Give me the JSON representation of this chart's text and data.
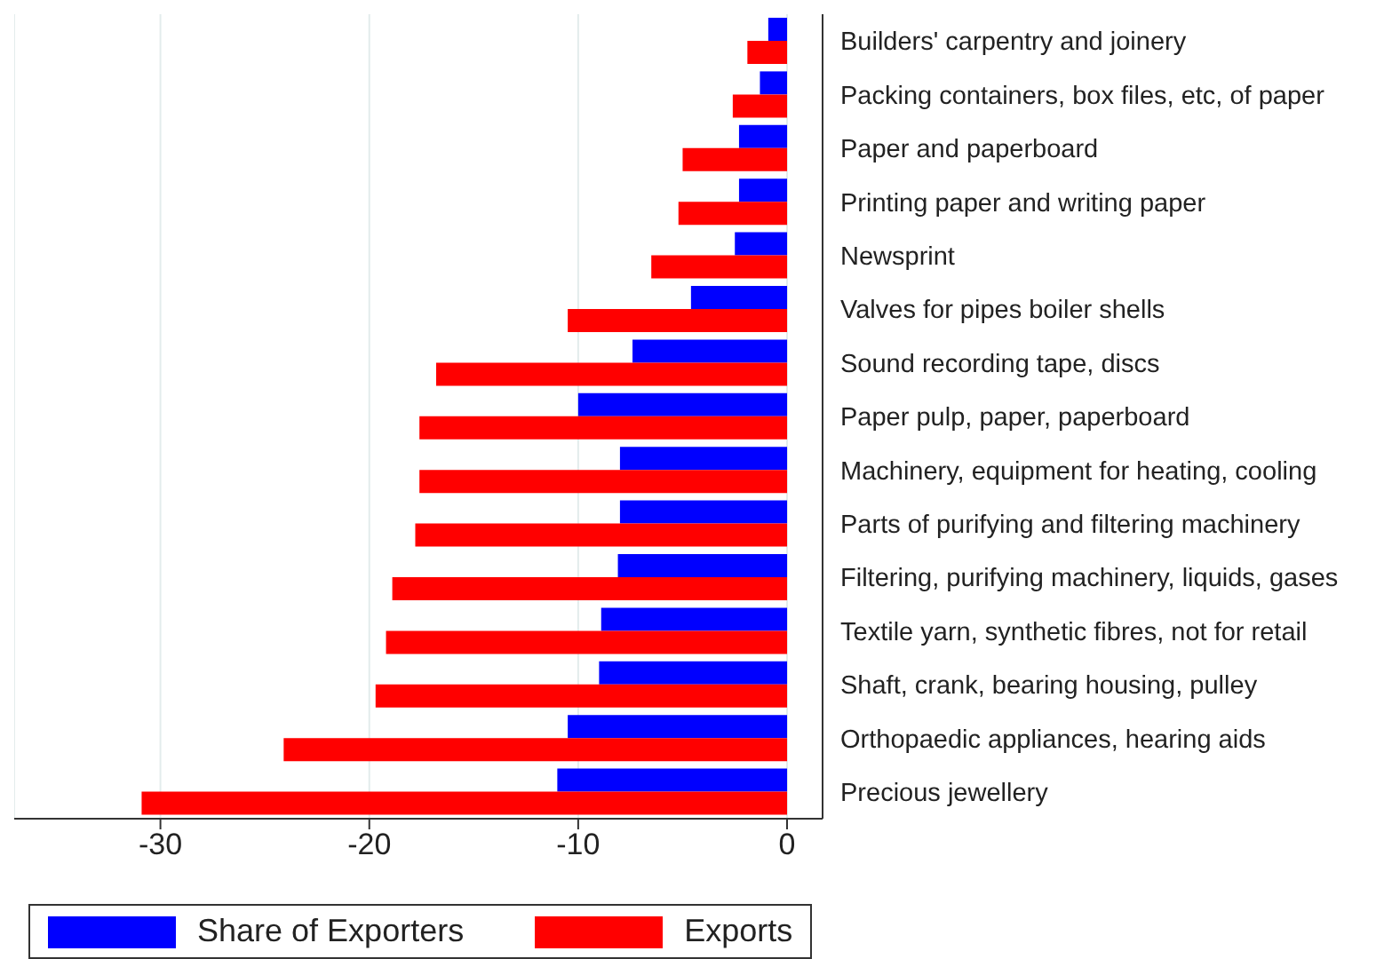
{
  "chart_data": {
    "type": "bar",
    "orientation": "horizontal",
    "categories": [
      "Builders' carpentry and joinery",
      "Packing containers, box files, etc, of paper",
      "Paper and paperboard",
      "Printing paper and writing paper",
      "Newsprint",
      "Valves for pipes boiler shells",
      "Sound recording tape, discs",
      "Paper pulp, paper, paperboard",
      "Machinery, equipment for heating, cooling",
      "Parts of purifying and filtering machinery",
      "Filtering, purifying machinery, liquids, gases",
      "Textile yarn, synthetic fibres, not for retail",
      "Shaft, crank, bearing housing, pulley",
      "Orthopaedic appliances, hearing aids",
      "Precious jewellery"
    ],
    "series": [
      {
        "name": "Share of Exporters",
        "color": "#0000ff",
        "values": [
          -0.9,
          -1.3,
          -2.3,
          -2.3,
          -2.5,
          -4.6,
          -7.4,
          -10.0,
          -8.0,
          -8.0,
          -8.1,
          -8.9,
          -9.0,
          -10.5,
          -11.0
        ]
      },
      {
        "name": "Exports",
        "color": "#ff0000",
        "values": [
          -1.9,
          -2.6,
          -5.0,
          -5.2,
          -6.5,
          -10.5,
          -16.8,
          -17.6,
          -17.6,
          -17.8,
          -18.9,
          -19.2,
          -19.7,
          -24.1,
          -30.9
        ]
      }
    ],
    "xlim": [
      -37,
      1.7
    ],
    "xticks": [
      -30,
      -20,
      -10,
      0
    ],
    "grid": "x",
    "legend": "bottom"
  }
}
